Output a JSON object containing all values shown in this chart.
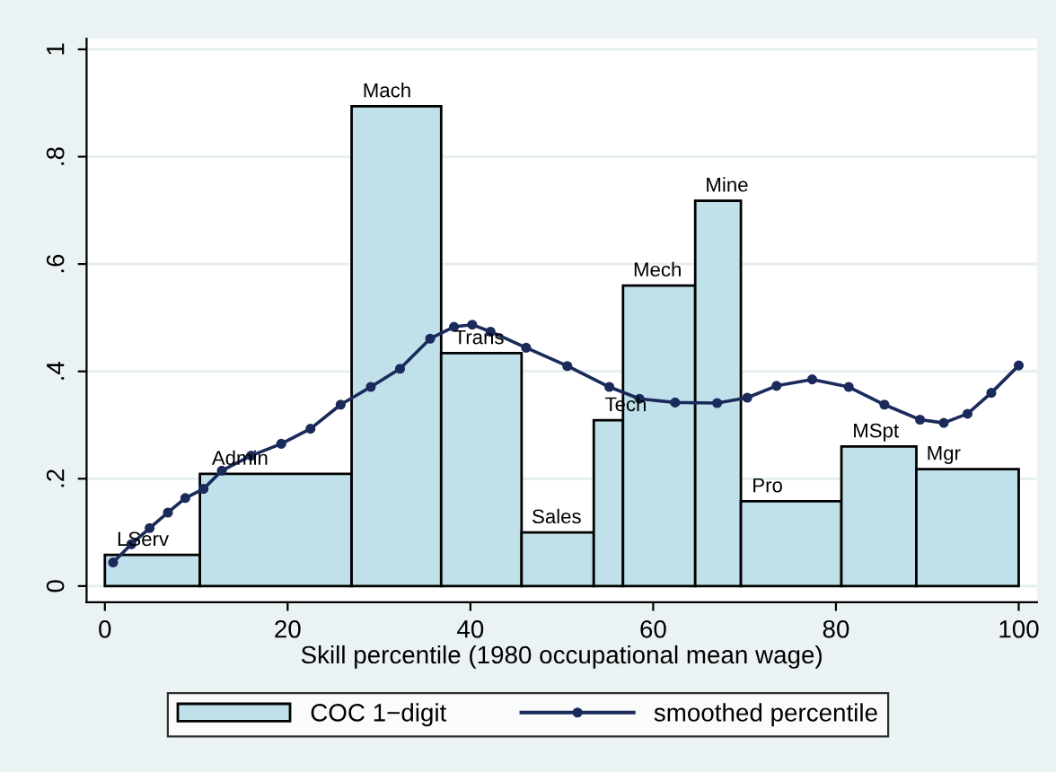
{
  "chart_data": {
    "type": "histogram",
    "xlabel": "Skill percentile (1980 occupational mean wage)",
    "bins": [
      0,
      10.4,
      27.0,
      36.8,
      45.6,
      53.5,
      56.7,
      64.6,
      69.6,
      80.6,
      88.8,
      100
    ],
    "series": [
      {
        "name": "COC 1−digit",
        "color": "#c0e0ea",
        "values": [
          0.058,
          0.209,
          0.894,
          0.434,
          0.1,
          0.309,
          0.56,
          0.718,
          0.158,
          0.26,
          0.218
        ]
      },
      {
        "name": "smoothed percentile",
        "type": "line",
        "color": "#1a2a5a",
        "marker": "circle",
        "x": [
          0.9,
          2.9,
          4.9,
          6.9,
          8.8,
          10.8,
          12.8,
          16.0,
          19.3,
          22.5,
          25.8,
          29.1,
          32.3,
          35.6,
          38.2,
          40.2,
          42.2,
          46.1,
          50.6,
          55.2,
          58.5,
          62.4,
          67.0,
          70.3,
          73.5,
          77.4,
          81.4,
          85.3,
          89.2,
          91.8,
          94.4,
          97.0,
          100
        ],
        "values": [
          0.044,
          0.078,
          0.108,
          0.137,
          0.164,
          0.181,
          0.215,
          0.243,
          0.265,
          0.293,
          0.338,
          0.371,
          0.405,
          0.461,
          0.483,
          0.487,
          0.474,
          0.444,
          0.41,
          0.371,
          0.349,
          0.342,
          0.341,
          0.351,
          0.373,
          0.385,
          0.371,
          0.338,
          0.31,
          0.304,
          0.321,
          0.36,
          0.411
        ]
      }
    ],
    "annotations": [
      {
        "text": "LServ",
        "x": 1.3,
        "y": 0.058
      },
      {
        "text": "Admin",
        "x": 11.7,
        "y": 0.209
      },
      {
        "text": "Mach",
        "x": 28.2,
        "y": 0.894
      },
      {
        "text": "Trans",
        "x": 38.2,
        "y": 0.434
      },
      {
        "text": "Sales",
        "x": 46.7,
        "y": 0.1
      },
      {
        "text": "Tech",
        "x": 54.7,
        "y": 0.309
      },
      {
        "text": "Mech",
        "x": 57.8,
        "y": 0.56
      },
      {
        "text": "Mine",
        "x": 65.7,
        "y": 0.718
      },
      {
        "text": "Pro",
        "x": 70.8,
        "y": 0.158
      },
      {
        "text": "MSpt",
        "x": 81.8,
        "y": 0.26
      },
      {
        "text": "Mgr",
        "x": 89.9,
        "y": 0.218
      }
    ],
    "xlim": [
      -2,
      102
    ],
    "xticks": [
      0,
      20,
      40,
      60,
      80,
      100
    ],
    "ylim": [
      -0.03,
      1.02
    ],
    "yticks": [
      0,
      {
        "value": 0.2,
        "label": ".2"
      },
      {
        "value": 0.4,
        "label": ".4"
      },
      {
        "value": 0.6,
        "label": ".6"
      },
      {
        "value": 0.8,
        "label": ".8"
      },
      1
    ],
    "grid": "y",
    "legend": "bottom"
  }
}
